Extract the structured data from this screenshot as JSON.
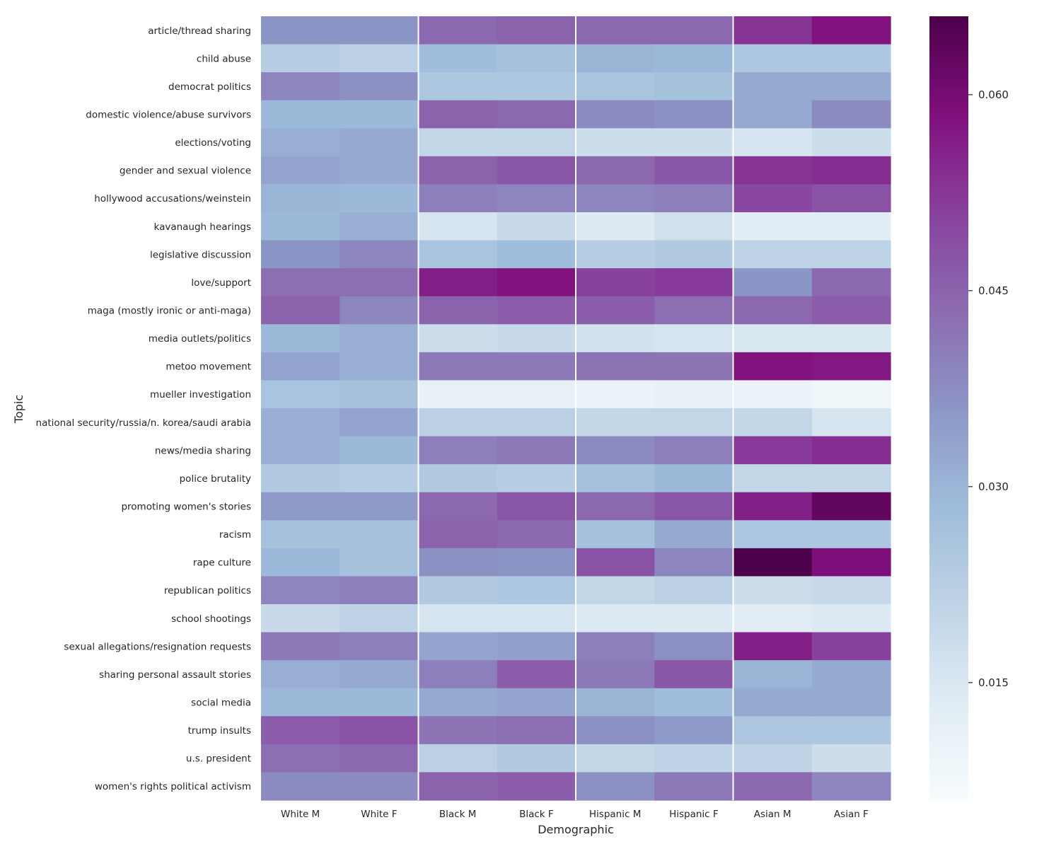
{
  "chart_data": {
    "type": "heatmap",
    "xlabel": "Demographic",
    "ylabel": "Topic",
    "columns": [
      "White M",
      "White F",
      "Black M",
      "Black F",
      "Hispanic M",
      "Hispanic F",
      "Asian M",
      "Asian F"
    ],
    "rows": [
      "article/thread sharing",
      "child abuse",
      "democrat politics",
      "domestic violence/abuse survivors",
      "elections/voting",
      "gender and sexual violence",
      "hollywood accusations/weinstein",
      "kavanaugh hearings",
      "legislative discussion",
      "love/support",
      "maga (mostly ironic or anti-maga)",
      "media outlets/politics",
      "metoo movement",
      "mueller investigation",
      "national security/russia/n. korea/saudi arabia",
      "news/media sharing",
      "police brutality",
      "promoting women's stories",
      "racism",
      "rape culture",
      "republican politics",
      "school shootings",
      "sexual allegations/resignation requests",
      "sharing personal assault stories",
      "social media",
      "trump insults",
      "u.s. president",
      "women's rights political activism"
    ],
    "values": [
      [
        0.036,
        0.036,
        0.044,
        0.045,
        0.044,
        0.044,
        0.053,
        0.058
      ],
      [
        0.023,
        0.022,
        0.028,
        0.027,
        0.03,
        0.029,
        0.025,
        0.025
      ],
      [
        0.039,
        0.037,
        0.025,
        0.025,
        0.026,
        0.027,
        0.032,
        0.032
      ],
      [
        0.029,
        0.029,
        0.045,
        0.044,
        0.038,
        0.037,
        0.032,
        0.038
      ],
      [
        0.031,
        0.032,
        0.02,
        0.02,
        0.018,
        0.018,
        0.016,
        0.018
      ],
      [
        0.033,
        0.032,
        0.045,
        0.047,
        0.044,
        0.047,
        0.053,
        0.054
      ],
      [
        0.03,
        0.029,
        0.04,
        0.039,
        0.039,
        0.04,
        0.05,
        0.048
      ],
      [
        0.029,
        0.031,
        0.016,
        0.019,
        0.014,
        0.017,
        0.013,
        0.013
      ],
      [
        0.036,
        0.039,
        0.026,
        0.028,
        0.023,
        0.024,
        0.021,
        0.021
      ],
      [
        0.043,
        0.043,
        0.056,
        0.058,
        0.051,
        0.052,
        0.036,
        0.044
      ],
      [
        0.045,
        0.039,
        0.045,
        0.046,
        0.046,
        0.043,
        0.044,
        0.046
      ],
      [
        0.029,
        0.031,
        0.018,
        0.019,
        0.017,
        0.016,
        0.015,
        0.015
      ],
      [
        0.033,
        0.031,
        0.041,
        0.041,
        0.042,
        0.042,
        0.058,
        0.057
      ],
      [
        0.026,
        0.027,
        0.011,
        0.011,
        0.01,
        0.011,
        0.01,
        0.009
      ],
      [
        0.031,
        0.033,
        0.022,
        0.022,
        0.02,
        0.02,
        0.02,
        0.016
      ],
      [
        0.031,
        0.029,
        0.04,
        0.041,
        0.038,
        0.04,
        0.052,
        0.054
      ],
      [
        0.024,
        0.023,
        0.024,
        0.023,
        0.027,
        0.029,
        0.02,
        0.02
      ],
      [
        0.035,
        0.035,
        0.044,
        0.047,
        0.044,
        0.047,
        0.056,
        0.063
      ],
      [
        0.027,
        0.027,
        0.045,
        0.044,
        0.027,
        0.032,
        0.025,
        0.025
      ],
      [
        0.029,
        0.027,
        0.037,
        0.036,
        0.048,
        0.039,
        0.068,
        0.059
      ],
      [
        0.039,
        0.04,
        0.024,
        0.025,
        0.02,
        0.022,
        0.018,
        0.019
      ],
      [
        0.019,
        0.021,
        0.016,
        0.016,
        0.014,
        0.014,
        0.013,
        0.014
      ],
      [
        0.041,
        0.04,
        0.033,
        0.034,
        0.04,
        0.037,
        0.056,
        0.051
      ],
      [
        0.031,
        0.032,
        0.04,
        0.046,
        0.041,
        0.047,
        0.03,
        0.032
      ],
      [
        0.029,
        0.029,
        0.032,
        0.033,
        0.03,
        0.028,
        0.032,
        0.032
      ],
      [
        0.046,
        0.048,
        0.042,
        0.043,
        0.037,
        0.035,
        0.025,
        0.025
      ],
      [
        0.043,
        0.044,
        0.022,
        0.024,
        0.02,
        0.021,
        0.021,
        0.018
      ],
      [
        0.038,
        0.038,
        0.045,
        0.046,
        0.037,
        0.041,
        0.044,
        0.039
      ]
    ],
    "colorbar": {
      "cmap": "BuPu",
      "vmin": 0.006,
      "vmax": 0.066,
      "ticks": [
        0.015,
        0.03,
        0.045,
        0.06
      ],
      "tick_labels": [
        "0.015",
        "0.030",
        "0.045",
        "0.060"
      ]
    },
    "vertical_separators_after_columns": [
      1,
      3,
      5
    ]
  }
}
